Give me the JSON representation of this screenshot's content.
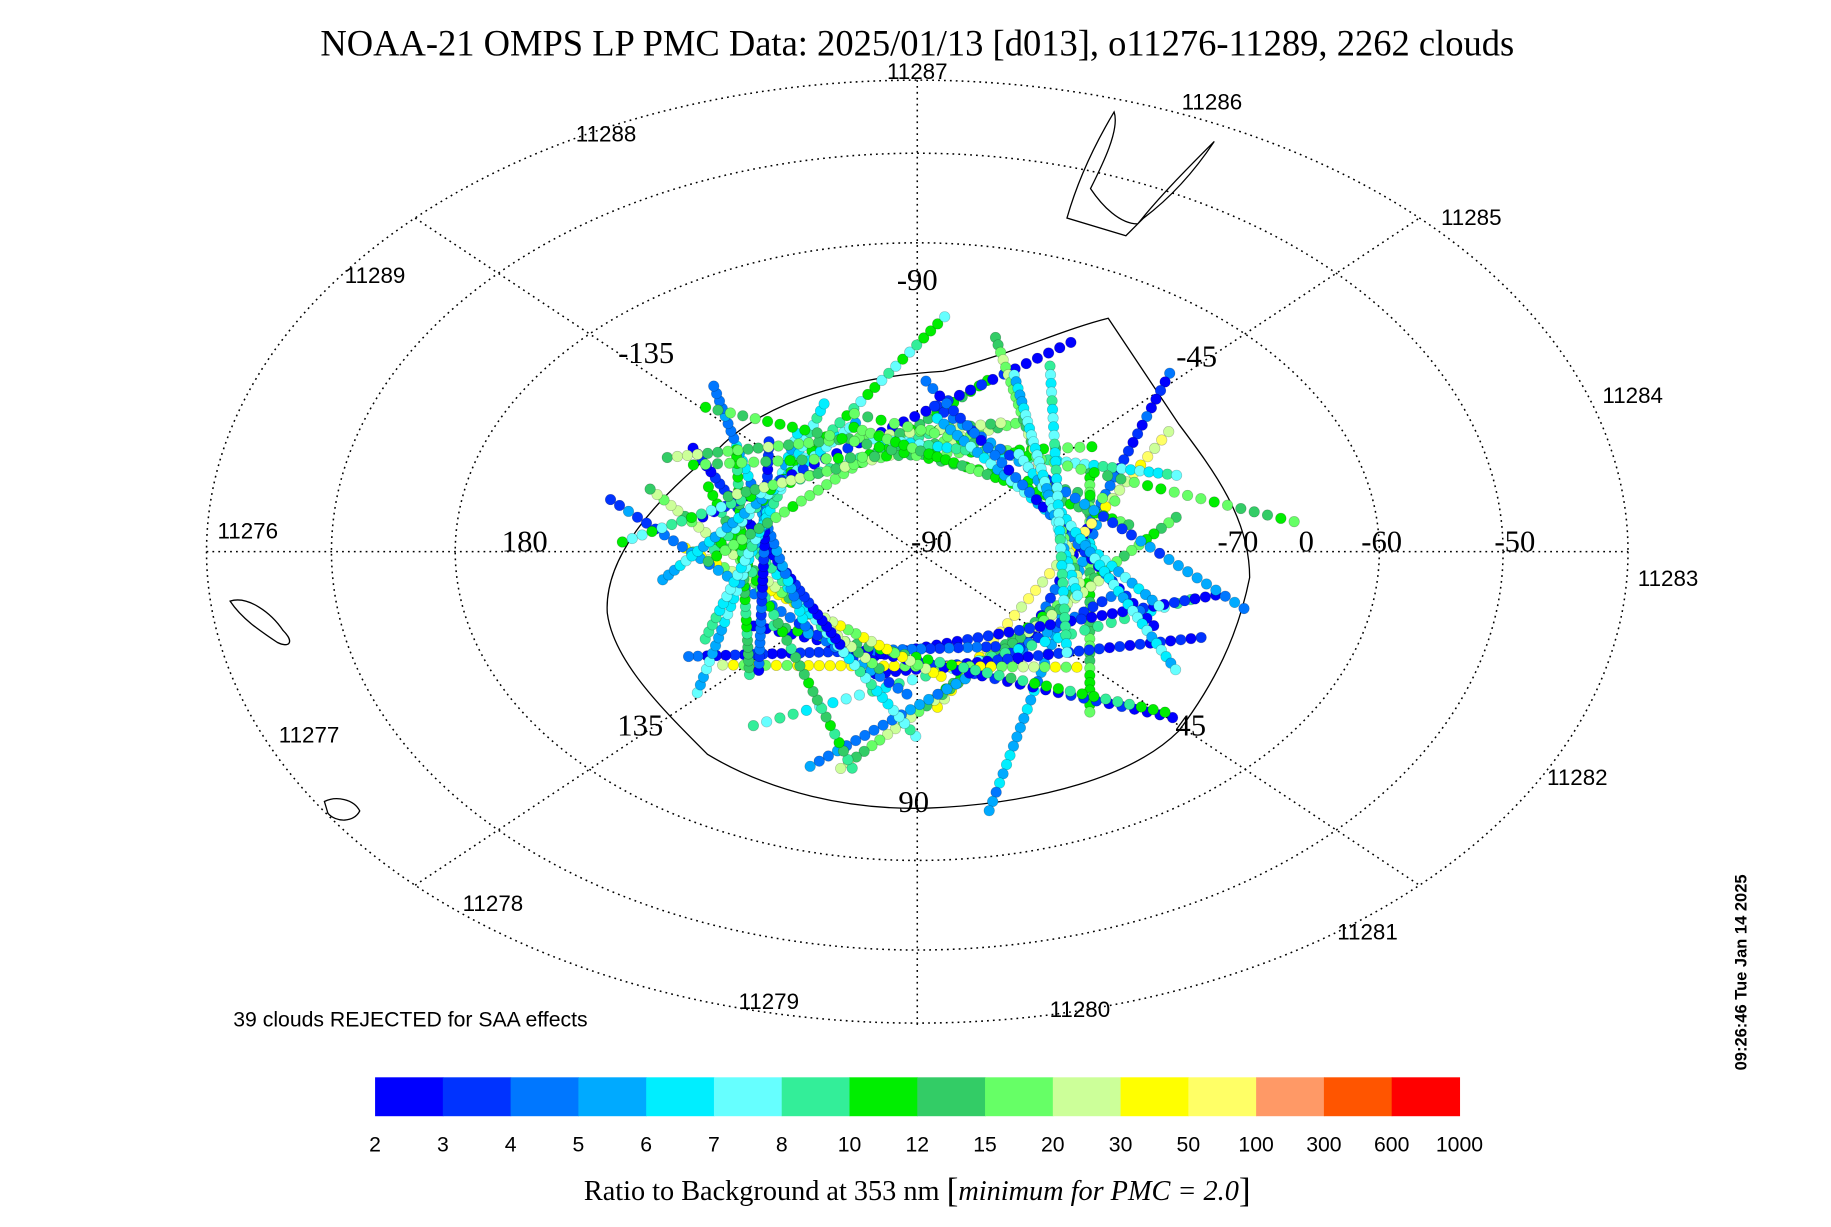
{
  "header": {
    "title": "NOAA-21 OMPS LP PMC Data: 2025/01/13 [d013], o11276-11289, 2262 clouds"
  },
  "map": {
    "orbit_labels": [
      "11287",
      "11286",
      "11285",
      "11284",
      "11283",
      "11282",
      "11281",
      "11280",
      "11279",
      "11278",
      "11277",
      "11276",
      "11289",
      "11288"
    ],
    "graticule_labels": [
      "-90",
      "-45",
      "-135",
      "180",
      "-90",
      "-70",
      "0",
      "-60",
      "-50",
      "135",
      "45",
      "90"
    ],
    "note": "39 clouds REJECTED for SAA effects",
    "timestamp": "09:26:46 Tue Jan 14 2025"
  },
  "colorbar": {
    "ticks": [
      2,
      3,
      4,
      5,
      6,
      7,
      8,
      10,
      12,
      15,
      20,
      30,
      50,
      100,
      300,
      600,
      1000
    ],
    "colors": [
      "#0000ff",
      "#0033ff",
      "#0077ff",
      "#00aaff",
      "#00eeff",
      "#66ffff",
      "#33ee99",
      "#00ee00",
      "#33cc66",
      "#66ff66",
      "#ccff99",
      "#ffff00",
      "#ffff66",
      "#ff9966",
      "#ff5500",
      "#ff0000"
    ],
    "title_parts": [
      "Ratio to Background at 353 nm",
      "[",
      "minimum for PMC = 2.0",
      "]"
    ]
  }
}
